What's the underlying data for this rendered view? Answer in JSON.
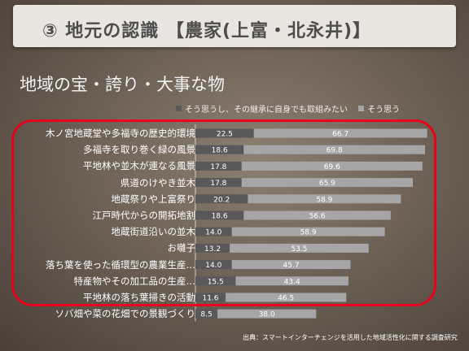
{
  "header": {
    "title": "③ 地元の認識 【農家(上富・北永井)】"
  },
  "subtitle": "地域の宝・誇り・大事な物",
  "source": "出典：スマートインターチェンジを活用した地域活性化に関する調査研究",
  "colors": {
    "series_dark": "#595959",
    "series_light": "#a6a6a6",
    "highlight_frame": "#e8001c"
  },
  "chart_data": {
    "type": "bar",
    "orientation": "horizontal",
    "stacked": true,
    "categories": [
      "木ノ宮地蔵堂や多福寺の歴史的環境",
      "多福寺を取り巻く緑の風景",
      "平地林や並木が連なる風景",
      "県道のけやき並木",
      "地蔵祭りや上富祭り",
      "江戸時代からの開拓地割",
      "地蔵街道沿いの並木",
      "お囃子",
      "落ち葉を使った循環型の農業生産…",
      "特産物やその加工品の生産…",
      "平地林の落ち葉掃きの活動",
      "ソバ畑や菜の花畑での景観づくり"
    ],
    "series": [
      {
        "name": "そう思うし、その継承に自身でも取組みたい",
        "values": [
          22.5,
          18.6,
          17.8,
          17.8,
          20.2,
          18.6,
          14.0,
          13.2,
          14.0,
          15.5,
          11.6,
          8.5
        ]
      },
      {
        "name": "そう思う",
        "values": [
          66.7,
          69.8,
          69.6,
          65.9,
          58.9,
          56.6,
          58.9,
          53.5,
          45.7,
          43.4,
          46.5,
          38.0
        ]
      }
    ],
    "xlim": [
      0,
      100
    ],
    "grid": false,
    "legend_position": "top"
  }
}
